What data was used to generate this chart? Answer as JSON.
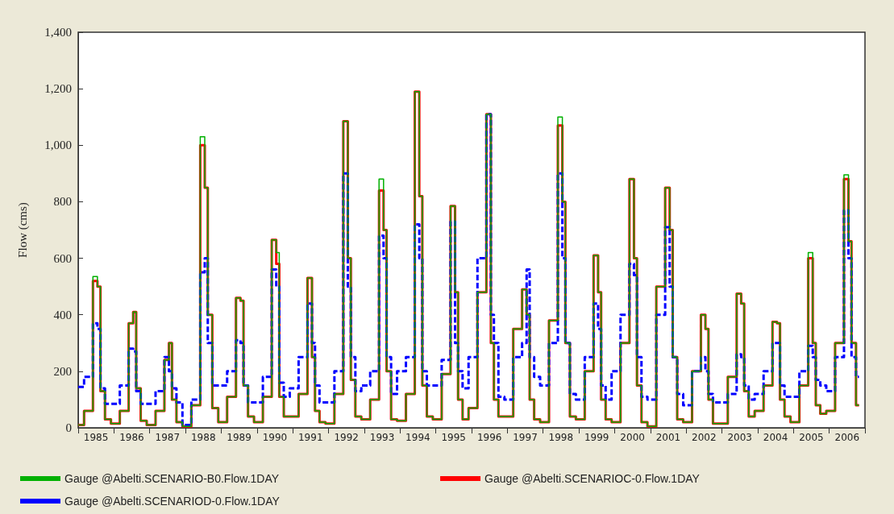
{
  "chart_data": {
    "type": "step",
    "ylabel": "Flow (cms)",
    "marker": "none",
    "legend": "bottom",
    "xlim": [
      "1985-01-01",
      "2007-01-01"
    ],
    "ylim": [
      0,
      1400
    ],
    "yticks": [
      0,
      200,
      400,
      600,
      800,
      {
        "value": 1000,
        "label": "1,000"
      },
      {
        "value": 1200,
        "label": "1,200"
      },
      {
        "value": 1400,
        "label": "1,400"
      }
    ],
    "xticks": [
      {
        "value": "1985-01-01",
        "label": null
      },
      {
        "value": "1986-01-01",
        "label": null
      },
      {
        "value": "1987-01-01",
        "label": null
      },
      {
        "value": "1988-01-01",
        "label": null
      },
      {
        "value": "1989-01-01",
        "label": null
      },
      {
        "value": "1990-01-01",
        "label": null
      },
      {
        "value": "1991-01-01",
        "label": null
      },
      {
        "value": "1992-01-01",
        "label": null
      },
      {
        "value": "1993-01-01",
        "label": null
      },
      {
        "value": "1994-01-01",
        "label": null
      },
      {
        "value": "1995-01-01",
        "label": null
      },
      {
        "value": "1996-01-01",
        "label": null
      },
      {
        "value": "1997-01-01",
        "label": null
      },
      {
        "value": "1998-01-01",
        "label": null
      },
      {
        "value": "1999-01-01",
        "label": null
      },
      {
        "value": "2000-01-01",
        "label": null
      },
      {
        "value": "2001-01-01",
        "label": null
      },
      {
        "value": "2002-01-01",
        "label": null
      },
      {
        "value": "2003-01-01",
        "label": null
      },
      {
        "value": "2004-01-01",
        "label": null
      },
      {
        "value": "2005-01-01",
        "label": null
      },
      {
        "value": "2006-01-01",
        "label": null
      },
      {
        "value": "2007-01-01",
        "label": null
      },
      {
        "value": "1985-07-02",
        "label": "1985"
      },
      {
        "value": "1986-07-02",
        "label": "1986"
      },
      {
        "value": "1987-07-02",
        "label": "1987"
      },
      {
        "value": "1988-07-02",
        "label": "1988"
      },
      {
        "value": "1989-07-02",
        "label": "1989"
      },
      {
        "value": "1990-07-02",
        "label": "1990"
      },
      {
        "value": "1991-07-02",
        "label": "1991"
      },
      {
        "value": "1992-07-02",
        "label": "1992"
      },
      {
        "value": "1993-07-02",
        "label": "1993"
      },
      {
        "value": "1994-07-02",
        "label": "1994"
      },
      {
        "value": "1995-07-02",
        "label": "1995"
      },
      {
        "value": "1996-07-02",
        "label": "1996"
      },
      {
        "value": "1997-07-02",
        "label": "1997"
      },
      {
        "value": "1998-07-02",
        "label": "1998"
      },
      {
        "value": "1999-07-02",
        "label": "1999"
      },
      {
        "value": "2000-07-02",
        "label": "2000"
      },
      {
        "value": "2001-07-02",
        "label": "2001"
      },
      {
        "value": "2002-07-02",
        "label": "2002"
      },
      {
        "value": "2003-07-02",
        "label": "2003"
      },
      {
        "value": "2004-07-02",
        "label": "2004"
      },
      {
        "value": "2005-07-02",
        "label": "2005"
      },
      {
        "value": "2006-07-02",
        "label": "2006"
      }
    ],
    "x": [
      "1985-01",
      "1985-05",
      "1985-07",
      "1985-08",
      "1985-09",
      "1985-11",
      "1986-01",
      "1986-05",
      "1986-07",
      "1986-08",
      "1986-09",
      "1986-11",
      "1987-01",
      "1987-05",
      "1987-07",
      "1987-08",
      "1987-09",
      "1987-11",
      "1988-01",
      "1988-05",
      "1988-07",
      "1988-08",
      "1988-09",
      "1988-11",
      "1989-01",
      "1989-05",
      "1989-07",
      "1989-08",
      "1989-09",
      "1989-11",
      "1990-01",
      "1990-05",
      "1990-07",
      "1990-08",
      "1990-09",
      "1990-11",
      "1991-01",
      "1991-05",
      "1991-07",
      "1991-08",
      "1991-09",
      "1991-11",
      "1992-01",
      "1992-05",
      "1992-07",
      "1992-08",
      "1992-09",
      "1992-11",
      "1993-01",
      "1993-05",
      "1993-07",
      "1993-08",
      "1993-09",
      "1993-11",
      "1994-01",
      "1994-05",
      "1994-07",
      "1994-08",
      "1994-09",
      "1994-11",
      "1995-01",
      "1995-05",
      "1995-07",
      "1995-08",
      "1995-09",
      "1995-11",
      "1996-01",
      "1996-05",
      "1996-07",
      "1996-08",
      "1996-09",
      "1996-11",
      "1997-01",
      "1997-05",
      "1997-07",
      "1997-08",
      "1997-09",
      "1997-11",
      "1998-01",
      "1998-05",
      "1998-07",
      "1998-08",
      "1998-09",
      "1998-11",
      "1999-01",
      "1999-05",
      "1999-07",
      "1999-08",
      "1999-09",
      "1999-11",
      "2000-01",
      "2000-05",
      "2000-07",
      "2000-08",
      "2000-09",
      "2000-11",
      "2001-01",
      "2001-05",
      "2001-07",
      "2001-08",
      "2001-09",
      "2001-11",
      "2002-01",
      "2002-05",
      "2002-07",
      "2002-08",
      "2002-09",
      "2002-11",
      "2003-01",
      "2003-05",
      "2003-07",
      "2003-08",
      "2003-09",
      "2003-11",
      "2004-01",
      "2004-05",
      "2004-07",
      "2004-08",
      "2004-09",
      "2004-11",
      "2005-01",
      "2005-05",
      "2005-07",
      "2005-08",
      "2005-09",
      "2005-11",
      "2006-01",
      "2006-05",
      "2006-07",
      "2006-08",
      "2006-09",
      "2006-11"
    ],
    "series": [
      {
        "name": "Gauge @Abelti.SCENARIO-B0.Flow.1DAY",
        "color": "#00b000",
        "line_style": "solid",
        "values": [
          10,
          60,
          535,
          500,
          130,
          30,
          15,
          60,
          370,
          410,
          140,
          25,
          10,
          60,
          240,
          300,
          100,
          20,
          5,
          80,
          1030,
          850,
          400,
          70,
          20,
          110,
          460,
          450,
          150,
          40,
          20,
          110,
          665,
          620,
          110,
          40,
          40,
          120,
          530,
          250,
          60,
          20,
          15,
          120,
          1085,
          600,
          170,
          40,
          30,
          100,
          880,
          700,
          200,
          30,
          25,
          120,
          1190,
          820,
          150,
          40,
          30,
          190,
          785,
          480,
          100,
          30,
          70,
          480,
          1110,
          300,
          100,
          40,
          40,
          350,
          490,
          400,
          100,
          30,
          20,
          380,
          1100,
          800,
          300,
          40,
          30,
          200,
          610,
          480,
          100,
          30,
          20,
          300,
          880,
          600,
          150,
          20,
          5,
          500,
          850,
          700,
          250,
          30,
          20,
          200,
          400,
          350,
          100,
          15,
          15,
          180,
          475,
          440,
          130,
          40,
          60,
          150,
          375,
          370,
          100,
          40,
          20,
          150,
          620,
          300,
          80,
          50,
          60,
          300,
          895,
          660,
          300,
          80
        ]
      },
      {
        "name": "Gauge @Abelti.SCENARIOC-0.Flow.1DAY",
        "color": "#ff0000",
        "line_style": "solid",
        "values": [
          10,
          60,
          520,
          500,
          130,
          30,
          15,
          60,
          370,
          410,
          140,
          25,
          10,
          60,
          240,
          300,
          100,
          20,
          5,
          80,
          1000,
          850,
          400,
          70,
          20,
          110,
          460,
          450,
          150,
          40,
          20,
          110,
          665,
          580,
          110,
          40,
          40,
          120,
          530,
          250,
          60,
          20,
          15,
          120,
          1085,
          600,
          170,
          40,
          30,
          100,
          840,
          700,
          200,
          30,
          25,
          120,
          1190,
          820,
          150,
          40,
          30,
          190,
          785,
          480,
          100,
          30,
          70,
          480,
          1110,
          300,
          100,
          40,
          40,
          350,
          490,
          400,
          100,
          30,
          20,
          380,
          1070,
          800,
          300,
          40,
          30,
          200,
          610,
          480,
          100,
          30,
          20,
          300,
          880,
          600,
          150,
          20,
          5,
          500,
          850,
          700,
          250,
          30,
          20,
          200,
          400,
          350,
          100,
          15,
          15,
          180,
          475,
          440,
          130,
          40,
          60,
          150,
          375,
          370,
          100,
          40,
          20,
          150,
          600,
          300,
          80,
          50,
          60,
          300,
          880,
          660,
          300,
          80
        ]
      },
      {
        "name": "Gauge @Abelti.SCENARIOD-0.Flow.1DAY",
        "color": "#0000ff",
        "line_style": "dashed",
        "values": [
          145,
          180,
          370,
          350,
          140,
          85,
          85,
          150,
          280,
          270,
          130,
          85,
          85,
          130,
          250,
          200,
          140,
          90,
          10,
          100,
          550,
          600,
          300,
          150,
          150,
          200,
          310,
          300,
          150,
          90,
          90,
          180,
          560,
          500,
          160,
          110,
          140,
          250,
          440,
          300,
          150,
          90,
          90,
          200,
          900,
          500,
          250,
          130,
          150,
          200,
          680,
          600,
          250,
          120,
          200,
          250,
          720,
          600,
          200,
          150,
          150,
          240,
          730,
          300,
          200,
          140,
          250,
          600,
          1110,
          400,
          300,
          110,
          100,
          250,
          300,
          560,
          250,
          180,
          150,
          300,
          900,
          600,
          300,
          120,
          100,
          250,
          440,
          350,
          150,
          100,
          200,
          400,
          580,
          540,
          250,
          110,
          100,
          400,
          710,
          500,
          250,
          120,
          80,
          200,
          250,
          200,
          120,
          90,
          90,
          120,
          260,
          250,
          150,
          100,
          120,
          200,
          300,
          300,
          150,
          110,
          110,
          200,
          290,
          250,
          170,
          150,
          130,
          250,
          770,
          600,
          250,
          180
        ]
      }
    ]
  }
}
